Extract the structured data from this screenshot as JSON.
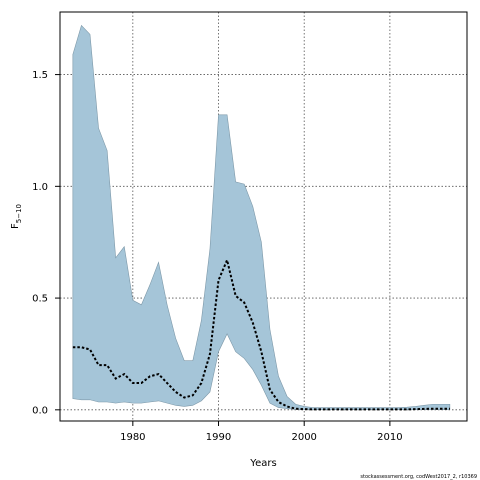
{
  "chart_data": {
    "type": "area",
    "xlabel": "Years",
    "ylabel": {
      "base": "F",
      "sub": "5−10"
    },
    "xlim": [
      1971.5,
      2019
    ],
    "ylim": [
      -0.05,
      1.78
    ],
    "x_ticks": [
      1980,
      1990,
      2000,
      2010
    ],
    "y_ticks": [
      0.0,
      0.5,
      1.0,
      1.5
    ],
    "y_tick_labels": [
      "0.0",
      "0.5",
      "1.0",
      "1.5"
    ],
    "grid": true,
    "band_color": "#a5c5d8",
    "band_edge_color": "#7d98a8",
    "line_color": "#000000",
    "credit": "stockassessment.org, codWest2017_2, r10369",
    "series": [
      {
        "role": "upper",
        "x": [
          1973,
          1974,
          1975,
          1976,
          1977,
          1978,
          1979,
          1980,
          1981,
          1982,
          1983,
          1984,
          1985,
          1986,
          1987,
          1988,
          1989,
          1990,
          1991,
          1992,
          1993,
          1994,
          1995,
          1996,
          1997,
          1998,
          1999,
          2000,
          2001,
          2002,
          2003,
          2004,
          2005,
          2006,
          2007,
          2008,
          2009,
          2010,
          2011,
          2012,
          2013,
          2014,
          2015,
          2016,
          2017
        ],
        "values": [
          1.59,
          1.72,
          1.68,
          1.26,
          1.16,
          0.68,
          0.73,
          0.49,
          0.47,
          0.56,
          0.66,
          0.47,
          0.32,
          0.22,
          0.22,
          0.4,
          0.72,
          1.32,
          1.32,
          1.02,
          1.01,
          0.91,
          0.75,
          0.36,
          0.15,
          0.06,
          0.025,
          0.015,
          0.01,
          0.01,
          0.01,
          0.01,
          0.01,
          0.01,
          0.01,
          0.01,
          0.01,
          0.01,
          0.01,
          0.012,
          0.015,
          0.02,
          0.025,
          0.025,
          0.025
        ]
      },
      {
        "role": "lower",
        "x": [
          1973,
          1974,
          1975,
          1976,
          1977,
          1978,
          1979,
          1980,
          1981,
          1982,
          1983,
          1984,
          1985,
          1986,
          1987,
          1988,
          1989,
          1990,
          1991,
          1992,
          1993,
          1994,
          1995,
          1996,
          1997,
          1998,
          1999,
          2000,
          2001,
          2002,
          2003,
          2004,
          2005,
          2006,
          2007,
          2008,
          2009,
          2010,
          2011,
          2012,
          2013,
          2014,
          2015,
          2016,
          2017
        ],
        "values": [
          0.05,
          0.045,
          0.045,
          0.035,
          0.035,
          0.03,
          0.035,
          0.03,
          0.03,
          0.035,
          0.04,
          0.03,
          0.02,
          0.015,
          0.02,
          0.04,
          0.08,
          0.26,
          0.34,
          0.26,
          0.23,
          0.18,
          0.11,
          0.03,
          0.01,
          0.005,
          0.002,
          0.001,
          0.001,
          0.001,
          0.001,
          0.001,
          0.001,
          0.001,
          0.001,
          0.001,
          0.001,
          0.001,
          0.001,
          0.001,
          0.001,
          0.001,
          0.001,
          0.001,
          0.001
        ]
      },
      {
        "role": "estimate",
        "x": [
          1973,
          1974,
          1975,
          1976,
          1977,
          1978,
          1979,
          1980,
          1981,
          1982,
          1983,
          1984,
          1985,
          1986,
          1987,
          1988,
          1989,
          1990,
          1991,
          1992,
          1993,
          1994,
          1995,
          1996,
          1997,
          1998,
          1999,
          2000,
          2001,
          2002,
          2003,
          2004,
          2005,
          2006,
          2007,
          2008,
          2009,
          2010,
          2011,
          2012,
          2013,
          2014,
          2015,
          2016,
          2017
        ],
        "values": [
          0.28,
          0.28,
          0.27,
          0.2,
          0.2,
          0.14,
          0.16,
          0.12,
          0.12,
          0.15,
          0.16,
          0.12,
          0.08,
          0.055,
          0.065,
          0.12,
          0.25,
          0.58,
          0.67,
          0.51,
          0.48,
          0.39,
          0.26,
          0.09,
          0.035,
          0.015,
          0.005,
          0.003,
          0.002,
          0.002,
          0.002,
          0.002,
          0.002,
          0.002,
          0.002,
          0.002,
          0.002,
          0.002,
          0.002,
          0.002,
          0.003,
          0.004,
          0.005,
          0.005,
          0.005
        ]
      }
    ]
  }
}
